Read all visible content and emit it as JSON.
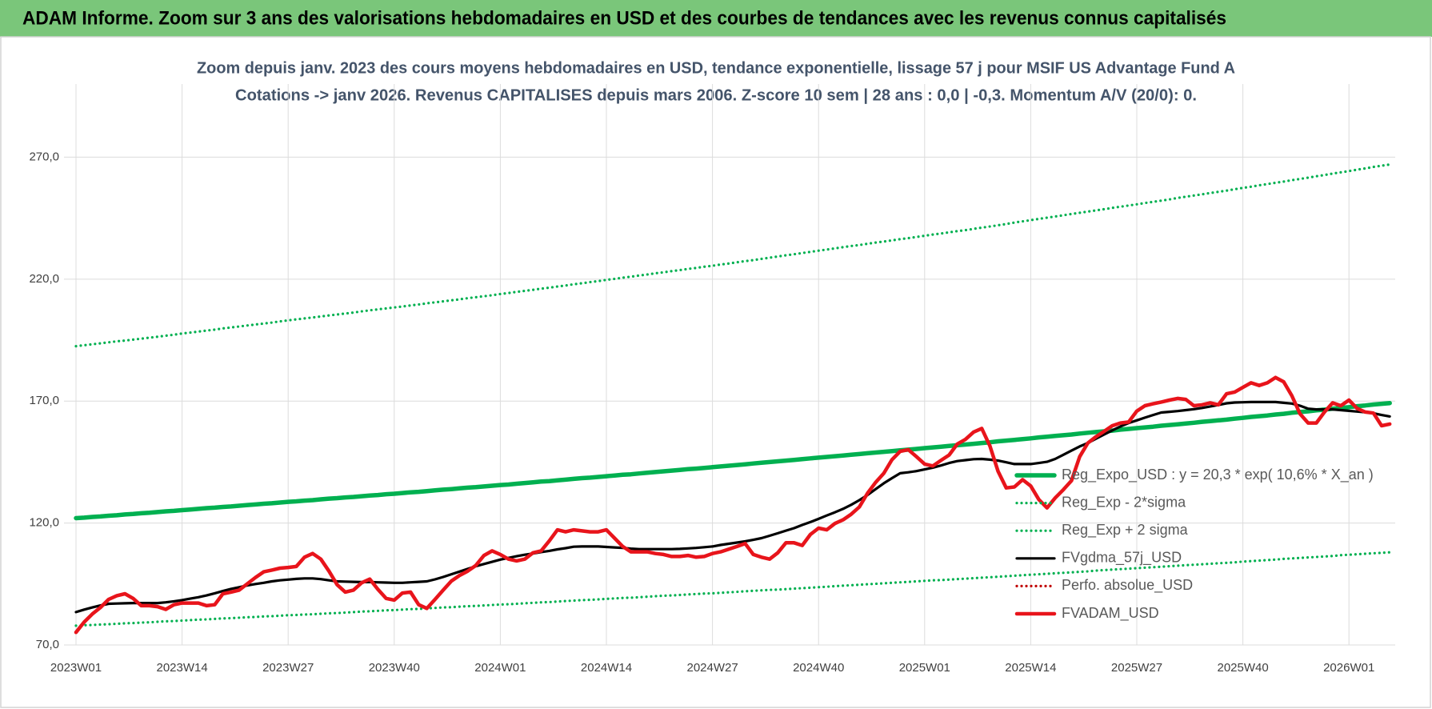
{
  "chart_data": {
    "type": "line",
    "title": "ADAM Informe. Zoom sur 3 ans des valorisations hebdomadaires en USD et des courbes de tendances avec les revenus connus capitalisés",
    "subtitle_lines": [
      "Zoom depuis janv. 2023 des cours moyens hebdomadaires en USD, tendance exponentielle, lissage 57 j pour MSIF US Advantage Fund A",
      "Cotations -> janv 2026. Revenus CAPITALISES depuis mars 2006. Z-score 10 sem | 28 ans : 0,0 | -0,3. Momentum A/V (20/0): 0."
    ],
    "categories": [
      "2023W01",
      null,
      null,
      null,
      null,
      null,
      null,
      null,
      null,
      null,
      null,
      null,
      null,
      "2023W14",
      null,
      null,
      null,
      null,
      null,
      null,
      null,
      null,
      null,
      null,
      null,
      null,
      "2023W27",
      null,
      null,
      null,
      null,
      null,
      null,
      null,
      null,
      null,
      null,
      null,
      null,
      "2023W40",
      null,
      null,
      null,
      null,
      null,
      null,
      null,
      null,
      null,
      null,
      null,
      null,
      "2024W01",
      null,
      null,
      null,
      null,
      null,
      null,
      null,
      null,
      null,
      null,
      null,
      null,
      "2024W14",
      null,
      null,
      null,
      null,
      null,
      null,
      null,
      null,
      null,
      null,
      null,
      null,
      "2024W27",
      null,
      null,
      null,
      null,
      null,
      null,
      null,
      null,
      null,
      null,
      null,
      null,
      "2024W40",
      null,
      null,
      null,
      null,
      null,
      null,
      null,
      null,
      null,
      null,
      null,
      null,
      "2025W01",
      null,
      null,
      null,
      null,
      null,
      null,
      null,
      null,
      null,
      null,
      null,
      null,
      "2025W14",
      null,
      null,
      null,
      null,
      null,
      null,
      null,
      null,
      null,
      null,
      null,
      null,
      "2025W27",
      null,
      null,
      null,
      null,
      null,
      null,
      null,
      null,
      null,
      null,
      null,
      null,
      "2025W40",
      null,
      null,
      null,
      null,
      null,
      null,
      null,
      null,
      null,
      null,
      null,
      null,
      "2026W01",
      null,
      null,
      null,
      null,
      null
    ],
    "ylim": [
      70,
      300
    ],
    "yticks": [
      {
        "value": 70,
        "label": "70,0"
      },
      {
        "value": 120,
        "label": "120,0"
      },
      {
        "value": 170,
        "label": "170,0"
      },
      {
        "value": 220,
        "label": "220,0"
      },
      {
        "value": 270,
        "label": "270,0"
      }
    ],
    "grid": true,
    "legend": "right",
    "series": [
      {
        "name": "Reg_Expo_USD : y = 20,3 * exp( 10,6% *  X_an )",
        "color": "#00b050",
        "style": "solid",
        "values": [
          122.0,
          122.2,
          122.5,
          122.7,
          123.0,
          123.2,
          123.5,
          123.7,
          124.0,
          124.2,
          124.5,
          124.8,
          125.0,
          125.3,
          125.5,
          125.8,
          126.1,
          126.3,
          126.6,
          126.8,
          127.1,
          127.4,
          127.6,
          127.9,
          128.1,
          128.4,
          128.7,
          128.9,
          129.2,
          129.4,
          129.7,
          130.0,
          130.2,
          130.5,
          130.7,
          131.0,
          131.3,
          131.5,
          131.8,
          132.0,
          132.3,
          132.6,
          132.8,
          133.1,
          133.4,
          133.7,
          133.9,
          134.2,
          134.5,
          134.7,
          135.0,
          135.3,
          135.6,
          135.8,
          136.1,
          136.4,
          136.7,
          137.0,
          137.2,
          137.5,
          137.8,
          138.1,
          138.4,
          138.6,
          138.9,
          139.2,
          139.5,
          139.8,
          140.0,
          140.3,
          140.6,
          140.9,
          141.2,
          141.5,
          141.8,
          142.1,
          142.3,
          142.6,
          142.9,
          143.2,
          143.5,
          143.8,
          144.1,
          144.4,
          144.7,
          145.0,
          145.3,
          145.6,
          145.9,
          146.2,
          146.5,
          146.8,
          147.1,
          147.4,
          147.7,
          148.0,
          148.3,
          148.6,
          148.9,
          149.2,
          149.5,
          149.8,
          150.1,
          150.4,
          150.7,
          151.0,
          151.3,
          151.6,
          151.9,
          152.2,
          152.5,
          152.8,
          153.1,
          153.5,
          153.8,
          154.1,
          154.4,
          154.7,
          155.1,
          155.4,
          155.7,
          156.0,
          156.3,
          156.7,
          157.0,
          157.3,
          157.6,
          157.9,
          158.3,
          158.6,
          158.9,
          159.2,
          159.5,
          159.9,
          160.2,
          160.5,
          160.8,
          161.1,
          161.5,
          161.8,
          162.1,
          162.4,
          162.8,
          163.1,
          163.5,
          163.8,
          164.1,
          164.5,
          164.8,
          165.2,
          165.5,
          165.8,
          166.2,
          166.5,
          166.9,
          167.2,
          167.5,
          167.9,
          168.2,
          168.6,
          168.9,
          169.2
        ]
      },
      {
        "name": "Reg_Exp - 2*sigma",
        "color": "#00b050",
        "style": "dotted",
        "values": [
          77.9,
          78.1,
          78.2,
          78.4,
          78.5,
          78.7,
          78.9,
          79.0,
          79.2,
          79.3,
          79.5,
          79.7,
          79.8,
          80.0,
          80.2,
          80.4,
          80.5,
          80.7,
          80.9,
          81.0,
          81.2,
          81.4,
          81.5,
          81.7,
          81.8,
          82.0,
          82.2,
          82.3,
          82.5,
          82.6,
          82.8,
          83.0,
          83.1,
          83.3,
          83.5,
          83.7,
          83.8,
          84.0,
          84.2,
          84.3,
          84.5,
          84.7,
          84.8,
          85.0,
          85.2,
          85.4,
          85.5,
          85.7,
          85.9,
          86.0,
          86.2,
          86.4,
          86.6,
          86.7,
          86.9,
          87.1,
          87.3,
          87.5,
          87.6,
          87.8,
          88.0,
          88.2,
          88.4,
          88.5,
          88.7,
          88.9,
          89.1,
          89.3,
          89.4,
          89.6,
          89.8,
          90.0,
          90.2,
          90.3,
          90.5,
          90.7,
          90.9,
          91.1,
          91.2,
          91.4,
          91.6,
          91.8,
          92.0,
          92.2,
          92.4,
          92.6,
          92.7,
          92.9,
          93.1,
          93.3,
          93.5,
          93.7,
          93.9,
          94.1,
          94.3,
          94.5,
          94.7,
          94.9,
          95.1,
          95.3,
          95.5,
          95.7,
          95.9,
          96.1,
          96.3,
          96.5,
          96.6,
          96.8,
          97.0,
          97.2,
          97.4,
          97.6,
          97.8,
          98.0,
          98.2,
          98.4,
          98.6,
          98.8,
          99.0,
          99.2,
          99.4,
          99.6,
          99.8,
          100.0,
          100.2,
          100.5,
          100.7,
          100.9,
          101.1,
          101.3,
          101.5,
          101.7,
          101.9,
          102.1,
          102.3,
          102.5,
          102.7,
          102.9,
          103.1,
          103.3,
          103.5,
          103.7,
          103.9,
          104.2,
          104.4,
          104.6,
          104.8,
          105.0,
          105.3,
          105.5,
          105.7,
          105.9,
          106.1,
          106.3,
          106.5,
          106.8,
          107.0,
          107.2,
          107.4,
          107.6,
          107.8,
          108.0
        ]
      },
      {
        "name": "Reg_Exp + 2 sigma",
        "color": "#00b050",
        "style": "dotted",
        "values": [
          192.5,
          192.9,
          193.3,
          193.7,
          194.1,
          194.5,
          194.8,
          195.2,
          195.6,
          196.0,
          196.4,
          196.8,
          197.2,
          197.7,
          198.1,
          198.5,
          198.9,
          199.3,
          199.8,
          200.2,
          200.6,
          201.0,
          201.4,
          201.8,
          202.2,
          202.7,
          203.1,
          203.5,
          203.9,
          204.3,
          204.7,
          205.1,
          205.5,
          205.9,
          206.3,
          206.8,
          207.2,
          207.6,
          208.0,
          208.4,
          208.8,
          209.2,
          209.6,
          210.1,
          210.5,
          210.9,
          211.3,
          211.7,
          212.2,
          212.6,
          213.0,
          213.4,
          213.9,
          214.3,
          214.8,
          215.2,
          215.6,
          216.1,
          216.5,
          217.0,
          217.4,
          217.9,
          218.3,
          218.8,
          219.2,
          219.7,
          220.1,
          220.6,
          221.0,
          221.5,
          221.9,
          222.4,
          222.8,
          223.3,
          223.7,
          224.2,
          224.6,
          225.1,
          225.5,
          226.0,
          226.4,
          226.9,
          227.4,
          227.8,
          228.3,
          228.8,
          229.3,
          229.8,
          230.2,
          230.7,
          231.2,
          231.7,
          232.1,
          232.6,
          233.1,
          233.6,
          234.0,
          234.5,
          235.0,
          235.4,
          235.9,
          236.4,
          236.8,
          237.3,
          237.8,
          238.3,
          238.7,
          239.2,
          239.7,
          240.1,
          240.6,
          241.1,
          241.6,
          242.1,
          242.6,
          243.2,
          243.7,
          244.2,
          244.7,
          245.2,
          245.7,
          246.2,
          246.7,
          247.2,
          247.7,
          248.2,
          248.7,
          249.2,
          249.7,
          250.2,
          250.7,
          251.2,
          251.7,
          252.2,
          252.7,
          253.3,
          253.8,
          254.3,
          254.8,
          255.3,
          255.8,
          256.3,
          256.9,
          257.4,
          257.9,
          258.5,
          259.0,
          259.5,
          260.0,
          260.6,
          261.1,
          261.6,
          262.2,
          262.7,
          263.3,
          263.8,
          264.3,
          264.9,
          265.4,
          266.0,
          266.5,
          267.0
        ]
      },
      {
        "name": "FVgdma_57j_USD",
        "color": "#000000",
        "style": "solid",
        "values": [
          83.5,
          84.5,
          85.4,
          86.2,
          86.9,
          87.0,
          87.1,
          87.2,
          87.2,
          87.2,
          87.2,
          87.5,
          87.9,
          88.4,
          89.0,
          89.6,
          90.3,
          91.2,
          92.1,
          93.0,
          93.7,
          94.4,
          95.0,
          95.5,
          96.1,
          96.5,
          96.8,
          97.1,
          97.3,
          97.3,
          97.0,
          96.5,
          96.1,
          96.0,
          95.9,
          95.8,
          95.8,
          95.7,
          95.6,
          95.5,
          95.5,
          95.7,
          95.9,
          96.1,
          96.9,
          97.9,
          99.0,
          100.1,
          101.2,
          102.3,
          103.2,
          104.1,
          105.0,
          105.7,
          106.4,
          107.0,
          107.5,
          108.1,
          108.6,
          109.2,
          109.7,
          110.3,
          110.4,
          110.4,
          110.4,
          110.2,
          110.0,
          109.8,
          109.5,
          109.3,
          109.3,
          109.3,
          109.3,
          109.3,
          109.4,
          109.6,
          109.8,
          110.1,
          110.4,
          111.0,
          111.5,
          112.0,
          112.5,
          113.1,
          113.8,
          114.8,
          115.8,
          116.9,
          117.9,
          119.2,
          120.4,
          121.7,
          123.1,
          124.4,
          125.8,
          127.5,
          129.4,
          131.5,
          133.9,
          136.3,
          138.4,
          140.4,
          140.8,
          141.3,
          142.0,
          142.7,
          143.6,
          144.6,
          145.4,
          145.8,
          146.2,
          146.3,
          146.0,
          145.6,
          144.9,
          144.2,
          144.2,
          144.2,
          144.6,
          145.1,
          146.3,
          148.0,
          149.7,
          151.4,
          152.8,
          154.6,
          156.3,
          158.0,
          159.6,
          161.0,
          162.1,
          163.2,
          164.3,
          165.3,
          165.6,
          165.9,
          166.3,
          166.7,
          167.2,
          167.8,
          168.4,
          169.1,
          169.4,
          169.5,
          169.6,
          169.6,
          169.6,
          169.6,
          169.3,
          169.0,
          168.1,
          166.9,
          166.6,
          166.6,
          166.6,
          166.3,
          166.0,
          165.7,
          165.4,
          165.0,
          164.3,
          163.7
        ]
      },
      {
        "name": "Perfo. absolue_USD",
        "color": "#c00000",
        "style": "dotted",
        "values": [
          null,
          null,
          null,
          null,
          null,
          null,
          null,
          null,
          null,
          null,
          null,
          null,
          null,
          null,
          null,
          null,
          null,
          null,
          null,
          null,
          null,
          null,
          null,
          null,
          null,
          null,
          null,
          null,
          null,
          null,
          null,
          null,
          null,
          null,
          null,
          null,
          null,
          null,
          null,
          null,
          null,
          null,
          null,
          null,
          null,
          null,
          null,
          null,
          null,
          null,
          null,
          null,
          null,
          null,
          null,
          null,
          null,
          null,
          null,
          null,
          null,
          null,
          null,
          null,
          null,
          null,
          null,
          null,
          null,
          null,
          null,
          null,
          null,
          null,
          null,
          null,
          null,
          null,
          null,
          null,
          null,
          null,
          null,
          null,
          null,
          null,
          null,
          null,
          null,
          null,
          null,
          null,
          null,
          null,
          null,
          null,
          null,
          null,
          null,
          null,
          null,
          null,
          null,
          null,
          null,
          null,
          null,
          null,
          null,
          null,
          null,
          null,
          null,
          null,
          null,
          null,
          null,
          null,
          null,
          null,
          null,
          null,
          null,
          null,
          null,
          null,
          null,
          null,
          null,
          null,
          null,
          null,
          null,
          null,
          null,
          null,
          null,
          null,
          null,
          null,
          null,
          null,
          null,
          null,
          null,
          null,
          null,
          null,
          null,
          null,
          null,
          null,
          null,
          null,
          null,
          null,
          null,
          null,
          null,
          null,
          null,
          null
        ]
      },
      {
        "name": "FVADAM_USD",
        "color": "#e8141b",
        "style": "solid",
        "values": [
          75.2,
          79.4,
          82.7,
          85.4,
          88.7,
          90.2,
          91.0,
          89.1,
          86.1,
          86.1,
          85.7,
          84.6,
          86.5,
          87.2,
          87.2,
          87.2,
          86.1,
          86.5,
          91.0,
          91.7,
          92.5,
          95.1,
          97.7,
          100.0,
          100.7,
          101.5,
          101.8,
          102.2,
          106.0,
          107.5,
          105.2,
          100.3,
          94.7,
          91.7,
          92.5,
          95.5,
          97.0,
          92.8,
          89.1,
          88.4,
          91.3,
          91.7,
          86.5,
          85.0,
          88.7,
          92.5,
          96.2,
          98.5,
          100.3,
          102.6,
          106.7,
          108.6,
          107.1,
          105.2,
          104.5,
          105.2,
          107.8,
          108.6,
          112.7,
          117.2,
          116.4,
          117.2,
          116.8,
          116.4,
          116.4,
          117.2,
          113.8,
          110.4,
          108.2,
          108.2,
          108.2,
          107.5,
          107.1,
          106.3,
          106.3,
          106.7,
          106.0,
          106.3,
          107.5,
          108.2,
          109.3,
          110.4,
          111.6,
          107.1,
          106.0,
          105.2,
          107.8,
          111.9,
          111.9,
          110.8,
          115.3,
          117.9,
          117.2,
          119.8,
          121.3,
          123.6,
          126.6,
          132.2,
          136.7,
          140.4,
          146.0,
          149.4,
          150.1,
          147.2,
          144.2,
          143.4,
          145.7,
          147.9,
          152.4,
          154.3,
          157.3,
          158.8,
          151.6,
          141.2,
          134.4,
          134.8,
          137.8,
          135.2,
          129.6,
          126.2,
          130.3,
          133.7,
          137.4,
          147.2,
          152.8,
          155.4,
          157.6,
          159.9,
          161.0,
          161.4,
          165.9,
          168.1,
          168.9,
          169.6,
          170.4,
          171.1,
          170.7,
          168.1,
          168.5,
          169.3,
          168.5,
          173.0,
          173.7,
          175.6,
          177.5,
          176.4,
          177.5,
          179.7,
          177.9,
          172.2,
          164.8,
          161.0,
          161.0,
          165.5,
          169.3,
          168.1,
          170.4,
          167.0,
          165.5,
          165.1,
          159.9,
          160.6
        ]
      }
    ]
  }
}
